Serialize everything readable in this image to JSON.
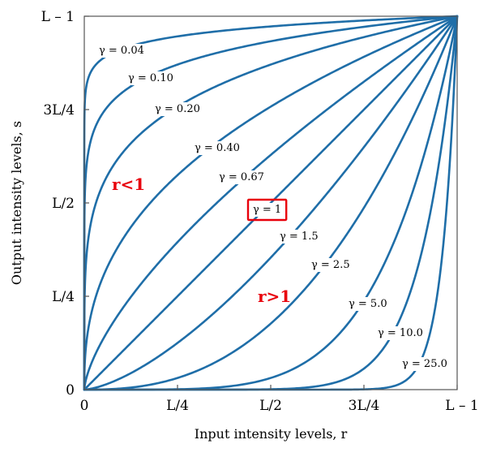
{
  "chart_data": {
    "type": "line",
    "xlabel": "Input intensity levels, r",
    "ylabel": "Output intensity levels, s",
    "xlim": [
      0,
      1
    ],
    "ylim": [
      0,
      1
    ],
    "x_ticks": [
      {
        "value": 0,
        "label": "0"
      },
      {
        "value": 0.25,
        "label": "L/4"
      },
      {
        "value": 0.5,
        "label": "L/2"
      },
      {
        "value": 0.75,
        "label": "3L/4"
      },
      {
        "value": 1,
        "label": "L – 1"
      }
    ],
    "y_ticks": [
      {
        "value": 0,
        "label": "0"
      },
      {
        "value": 0.25,
        "label": "L/4"
      },
      {
        "value": 0.5,
        "label": "L/2"
      },
      {
        "value": 0.75,
        "label": "3L/4"
      },
      {
        "value": 1,
        "label": "L – 1"
      }
    ],
    "series": [
      {
        "gamma": 0.04,
        "label": "γ = 0.04"
      },
      {
        "gamma": 0.1,
        "label": "γ = 0.10"
      },
      {
        "gamma": 0.2,
        "label": "γ = 0.20"
      },
      {
        "gamma": 0.4,
        "label": "γ = 0.40"
      },
      {
        "gamma": 0.67,
        "label": "γ = 0.67"
      },
      {
        "gamma": 1.0,
        "label": "γ = 1",
        "highlighted": true
      },
      {
        "gamma": 1.5,
        "label": "γ = 1.5"
      },
      {
        "gamma": 2.5,
        "label": "γ = 2.5"
      },
      {
        "gamma": 5.0,
        "label": "γ = 5.0"
      },
      {
        "gamma": 10.0,
        "label": "γ = 10.0"
      },
      {
        "gamma": 25.0,
        "label": "γ = 25.0"
      }
    ],
    "annotations": [
      {
        "text": "r<1",
        "color": "#e8000b"
      },
      {
        "text": "r>1",
        "color": "#e8000b"
      }
    ],
    "curve_color": "#1f6ea8",
    "highlight_color": "#e8000b"
  }
}
